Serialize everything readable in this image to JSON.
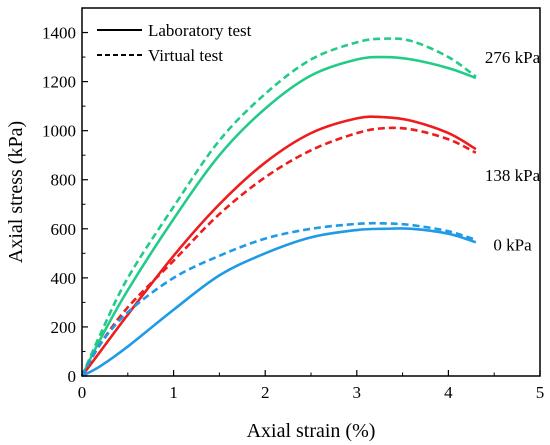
{
  "chart_data": {
    "type": "line",
    "xlabel": "Axial strain (%)",
    "ylabel": "Axial stress (kPa)",
    "xlim": [
      0,
      5
    ],
    "ylim": [
      0,
      1500
    ],
    "xticks": [
      0,
      1,
      2,
      3,
      4,
      5
    ],
    "yticks": [
      0,
      200,
      400,
      600,
      800,
      1000,
      1200,
      1400
    ],
    "grid": false,
    "legend": {
      "position": "top-left",
      "entries": [
        {
          "label": "Laboratory test",
          "style": "solid"
        },
        {
          "label": "Virtual test",
          "style": "dashed"
        }
      ]
    },
    "annotations": [
      {
        "text": "276 kPa",
        "x": 4.7,
        "y": 1300
      },
      {
        "text": "138 kPa",
        "x": 4.7,
        "y": 820
      },
      {
        "text": "0 kPa",
        "x": 4.7,
        "y": 535
      }
    ],
    "series": [
      {
        "group": "276 kPa",
        "style": "solid",
        "color": "#22cc88",
        "x": [
          0,
          0.2,
          0.5,
          1.0,
          1.5,
          2.0,
          2.5,
          3.0,
          3.3,
          3.6,
          4.0,
          4.3
        ],
        "y": [
          0,
          150,
          350,
          640,
          900,
          1090,
          1225,
          1290,
          1300,
          1290,
          1255,
          1215
        ]
      },
      {
        "group": "276 kPa",
        "style": "dashed",
        "color": "#22cc88",
        "x": [
          0,
          0.2,
          0.5,
          1.0,
          1.5,
          2.0,
          2.5,
          3.0,
          3.3,
          3.6,
          4.0,
          4.3
        ],
        "y": [
          0,
          170,
          400,
          690,
          960,
          1150,
          1290,
          1360,
          1375,
          1365,
          1300,
          1220
        ]
      },
      {
        "group": "138 kPa",
        "style": "solid",
        "color": "#ee1c1c",
        "x": [
          0,
          0.2,
          0.5,
          1.0,
          1.5,
          2.0,
          2.5,
          3.0,
          3.3,
          3.6,
          4.0,
          4.3
        ],
        "y": [
          0,
          100,
          250,
          490,
          700,
          870,
          990,
          1050,
          1055,
          1040,
          990,
          925
        ]
      },
      {
        "group": "138 kPa",
        "style": "dashed",
        "color": "#ee1c1c",
        "x": [
          0,
          0.2,
          0.5,
          1.0,
          1.5,
          2.0,
          2.5,
          3.0,
          3.3,
          3.6,
          4.0,
          4.3
        ],
        "y": [
          0,
          130,
          280,
          470,
          660,
          810,
          920,
          990,
          1010,
          1005,
          965,
          910
        ]
      },
      {
        "group": "0 kPa",
        "style": "solid",
        "color": "#1f9ae6",
        "x": [
          0,
          0.2,
          0.5,
          1.0,
          1.5,
          2.0,
          2.5,
          3.0,
          3.3,
          3.6,
          4.0,
          4.3
        ],
        "y": [
          0,
          40,
          120,
          270,
          410,
          500,
          565,
          595,
          600,
          600,
          580,
          545
        ]
      },
      {
        "group": "0 kPa",
        "style": "dashed",
        "color": "#1f9ae6",
        "x": [
          0,
          0.2,
          0.5,
          1.0,
          1.5,
          2.0,
          2.5,
          3.0,
          3.3,
          3.6,
          4.0,
          4.3
        ],
        "y": [
          0,
          130,
          260,
          400,
          490,
          560,
          600,
          620,
          622,
          615,
          590,
          555
        ]
      }
    ]
  }
}
